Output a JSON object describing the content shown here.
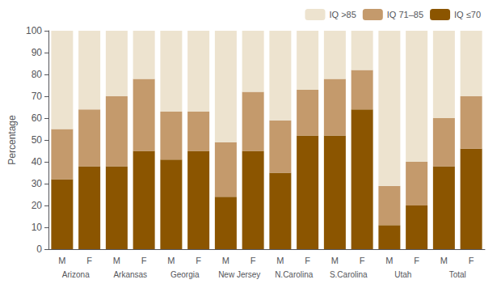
{
  "chart_data": {
    "type": "bar",
    "stacked": true,
    "ylabel": "Percentage",
    "categories": [
      "M",
      "F",
      "M",
      "F",
      "M",
      "F",
      "M",
      "F",
      "M",
      "F",
      "M",
      "F",
      "M",
      "F",
      "M",
      "F"
    ],
    "groups": [
      "Arizona",
      "Arkansas",
      "Georgia",
      "New Jersey",
      "N.Carolina",
      "S.Carolina",
      "Utah",
      "Total"
    ],
    "series": [
      {
        "name": "IQ ≤70",
        "color": "#8B5500",
        "values": [
          32,
          38,
          38,
          45,
          41,
          45,
          24,
          45,
          35,
          52,
          52,
          64,
          11,
          20,
          38,
          46
        ]
      },
      {
        "name": "IQ 71–85",
        "color": "#C49A6C",
        "values": [
          23,
          26,
          32,
          33,
          22,
          18,
          25,
          27,
          24,
          21,
          26,
          18,
          18,
          20,
          22,
          24
        ]
      },
      {
        "name": "IQ >85",
        "color": "#EDE3CF",
        "values": [
          45,
          36,
          30,
          22,
          37,
          37,
          51,
          28,
          41,
          27,
          22,
          18,
          71,
          60,
          40,
          30
        ]
      }
    ],
    "ylim": [
      0,
      100
    ],
    "yticks": [
      0,
      10,
      20,
      30,
      40,
      50,
      60,
      70,
      80,
      90,
      100
    ],
    "grid": false,
    "legend": "upper right"
  }
}
